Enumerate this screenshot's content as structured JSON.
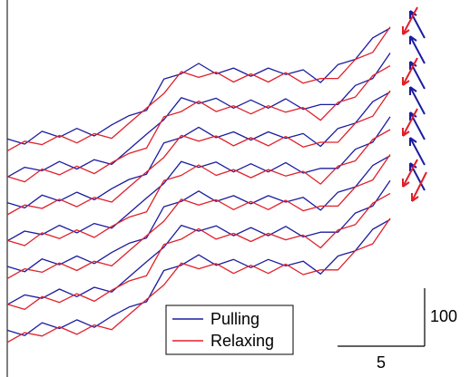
{
  "chart_data": {
    "type": "line",
    "x": [
      0,
      1,
      2,
      3,
      4,
      5,
      6,
      7,
      8,
      9,
      10,
      11,
      12,
      13,
      14,
      15,
      16,
      17,
      18,
      19,
      20,
      21,
      22
    ],
    "xlim": [
      0,
      22
    ],
    "ylim": [
      0,
      600
    ],
    "scale_x": 5,
    "scale_y": 100,
    "series": [
      {
        "name": "Pulling",
        "color": "#1c1ca0",
        "values": [
          [
            40,
            31,
            53,
            43,
            58,
            45,
            64,
            80,
            89,
            143,
            152,
            170,
            152,
            162,
            148,
            162,
            151,
            159,
            137,
            168,
            177,
            214,
            231
          ],
          [
            84,
            101,
            95,
            111,
            98,
            114,
            106,
            132,
            158,
            183,
            221,
            211,
            220,
            203,
            217,
            203,
            219,
            201,
            209,
            209,
            242,
            254,
            298
          ],
          [
            150,
            141,
            163,
            153,
            168,
            155,
            174,
            190,
            199,
            253,
            262,
            280,
            262,
            272,
            258,
            272,
            261,
            269,
            247,
            278,
            287,
            324,
            341
          ],
          [
            194,
            211,
            205,
            221,
            208,
            224,
            216,
            242,
            268,
            293,
            331,
            321,
            330,
            313,
            327,
            313,
            329,
            311,
            319,
            319,
            352,
            364,
            408
          ],
          [
            260,
            251,
            273,
            263,
            278,
            265,
            284,
            300,
            309,
            363,
            372,
            390,
            372,
            382,
            368,
            382,
            371,
            379,
            357,
            388,
            397,
            434,
            451
          ],
          [
            304,
            321,
            315,
            331,
            318,
            334,
            326,
            352,
            378,
            403,
            441,
            431,
            440,
            423,
            437,
            423,
            439,
            421,
            429,
            429,
            462,
            474,
            518
          ],
          [
            370,
            361,
            383,
            373,
            388,
            375,
            394,
            410,
            419,
            473,
            482,
            500,
            482,
            492,
            478,
            492,
            481,
            489,
            467,
            498,
            507,
            544,
            561
          ]
        ]
      },
      {
        "name": "Relaxing",
        "color": "#e0202a",
        "values": [
          [
            19,
            36,
            30,
            46,
            33,
            49,
            41,
            67,
            93,
            118,
            156,
            146,
            155,
            138,
            152,
            138,
            154,
            136,
            144,
            144,
            177,
            189,
            233
          ],
          [
            85,
            76,
            98,
            88,
            103,
            90,
            109,
            125,
            134,
            188,
            197,
            215,
            197,
            207,
            193,
            207,
            196,
            204,
            182,
            213,
            222,
            259,
            276
          ],
          [
            129,
            146,
            140,
            156,
            143,
            159,
            151,
            177,
            203,
            228,
            266,
            256,
            265,
            248,
            262,
            248,
            264,
            246,
            254,
            254,
            287,
            299,
            343
          ],
          [
            195,
            186,
            208,
            198,
            213,
            200,
            219,
            235,
            244,
            298,
            307,
            325,
            307,
            317,
            303,
            317,
            306,
            314,
            292,
            323,
            332,
            369,
            386
          ],
          [
            239,
            256,
            250,
            266,
            253,
            269,
            261,
            287,
            313,
            338,
            376,
            366,
            375,
            358,
            372,
            358,
            374,
            356,
            364,
            364,
            397,
            409,
            453
          ],
          [
            305,
            296,
            318,
            308,
            323,
            310,
            329,
            345,
            354,
            408,
            417,
            435,
            417,
            427,
            413,
            427,
            416,
            424,
            402,
            433,
            442,
            479,
            496
          ],
          [
            349,
            366,
            360,
            376,
            363,
            379,
            371,
            397,
            423,
            448,
            486,
            476,
            485,
            468,
            482,
            468,
            484,
            466,
            474,
            474,
            507,
            519,
            563
          ]
        ]
      }
    ]
  }
}
